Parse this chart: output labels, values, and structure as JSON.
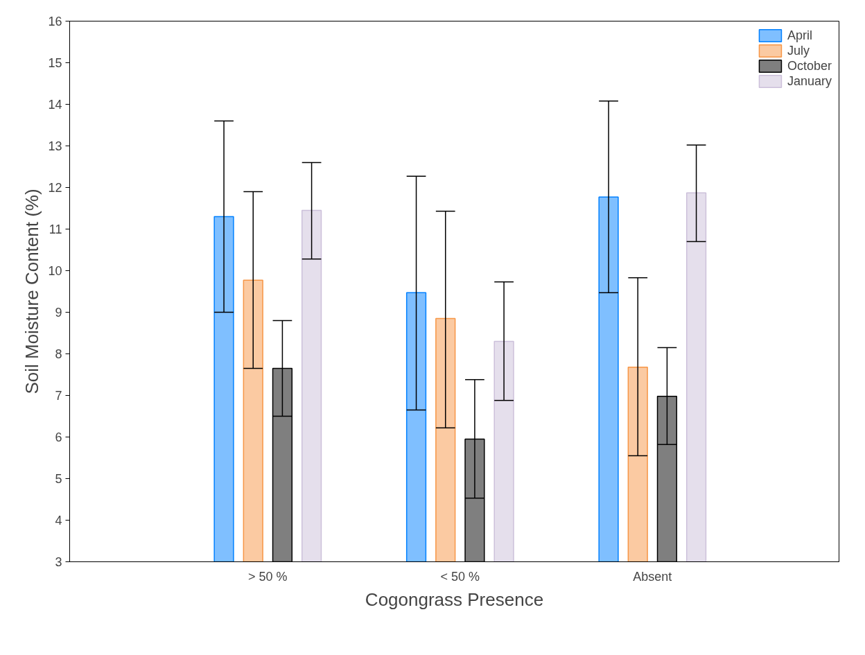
{
  "chart_data": {
    "type": "bar",
    "xlabel": "Cogongrass Presence",
    "ylabel": "Soil Moisture Content (%)",
    "categories": [
      "> 50 %",
      "< 50 %",
      "Absent"
    ],
    "series": [
      {
        "name": "April",
        "color": "#0080ff",
        "values": [
          11.3,
          9.47,
          11.77
        ],
        "errors": [
          [
            9.0,
            13.6
          ],
          [
            6.65,
            12.27
          ],
          [
            9.47,
            14.08
          ]
        ]
      },
      {
        "name": "July",
        "color": "#f79646",
        "values": [
          9.77,
          8.85,
          7.68
        ],
        "errors": [
          [
            7.65,
            11.9
          ],
          [
            6.22,
            11.43
          ],
          [
            5.55,
            9.83
          ]
        ]
      },
      {
        "name": "October",
        "color": "#000000",
        "values": [
          7.65,
          5.95,
          6.98
        ],
        "errors": [
          [
            6.5,
            8.8
          ],
          [
            4.53,
            7.38
          ],
          [
            5.82,
            8.15
          ]
        ]
      },
      {
        "name": "January",
        "color": "#ccc0da",
        "values": [
          11.45,
          8.3,
          11.87
        ],
        "errors": [
          [
            10.28,
            12.6
          ],
          [
            6.88,
            9.73
          ],
          [
            10.7,
            13.02
          ]
        ]
      }
    ],
    "ylim": [
      3,
      16
    ],
    "yticks": [
      3,
      4,
      5,
      6,
      7,
      8,
      9,
      10,
      11,
      12,
      13,
      14,
      15,
      16
    ],
    "grid": false,
    "legend": "top right"
  }
}
